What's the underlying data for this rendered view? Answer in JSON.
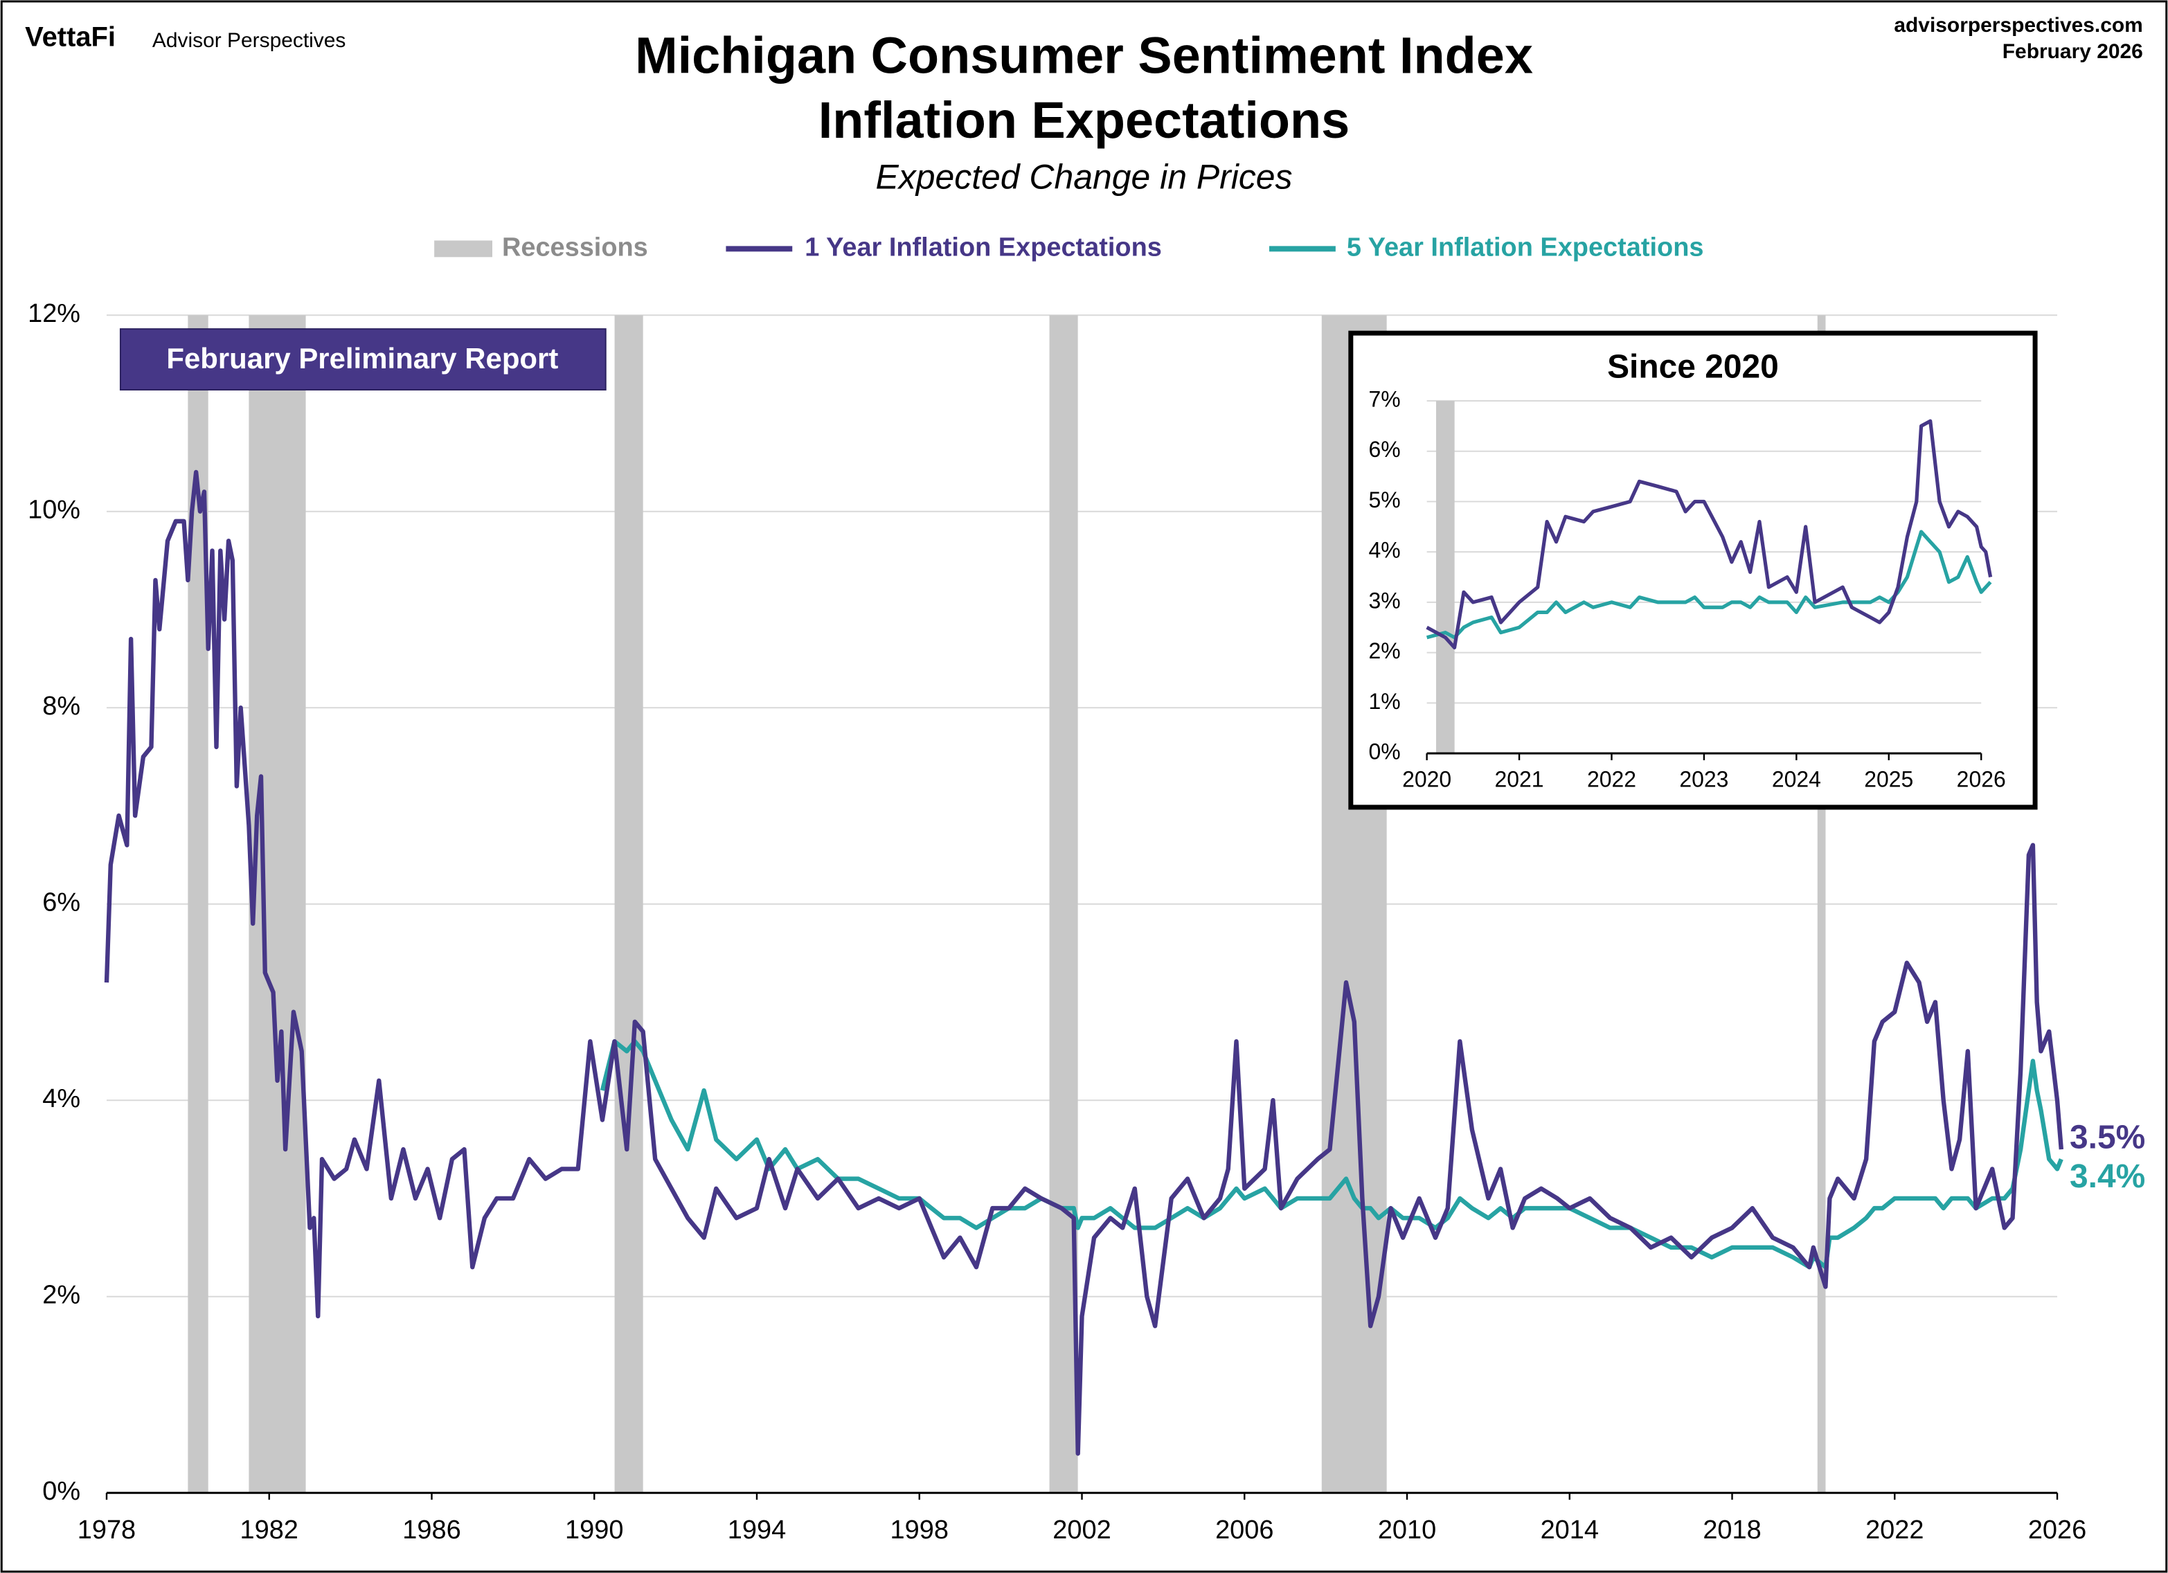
{
  "header": {
    "brand": "VettaFi",
    "publisher": "Advisor Perspectives",
    "website": "advisorperspectives.com",
    "date": "February 2026"
  },
  "chart_data": [
    {
      "type": "line",
      "title": [
        "Michigan Consumer Sentiment Index",
        "Inflation Expectations"
      ],
      "subtitle": "Expected Change in Prices",
      "annotation": "February Preliminary Report",
      "recession_label": "Recessions",
      "recession_color": "#c8c8c8",
      "recessions": [
        [
          1980.0,
          1980.5
        ],
        [
          1981.5,
          1982.9
        ],
        [
          1990.5,
          1991.2
        ],
        [
          2001.2,
          2001.9
        ],
        [
          2007.9,
          2009.5
        ],
        [
          2020.1,
          2020.3
        ]
      ],
      "x": [
        1978.0,
        1978.1,
        1978.3,
        1978.5,
        1978.6,
        1978.7,
        1978.9,
        1979.1,
        1979.2,
        1979.3,
        1979.5,
        1979.7,
        1979.9,
        1980.0,
        1980.1,
        1980.2,
        1980.3,
        1980.4,
        1980.5,
        1980.6,
        1980.7,
        1980.8,
        1980.9,
        1981.0,
        1981.1,
        1981.2,
        1981.3,
        1981.5,
        1981.6,
        1981.7,
        1981.8,
        1981.9,
        1982.1,
        1982.2,
        1982.3,
        1982.4,
        1982.6,
        1982.8,
        1983.0,
        1983.1,
        1983.2,
        1983.3,
        1983.6,
        1983.9,
        1984.1,
        1984.4,
        1984.7,
        1985.0,
        1985.3,
        1985.6,
        1985.9,
        1986.2,
        1986.5,
        1986.8,
        1987.0,
        1987.3,
        1987.6,
        1988.0,
        1988.4,
        1988.8,
        1989.2,
        1989.6,
        1989.9,
        1990.2,
        1990.5,
        1990.8,
        1991.0,
        1991.2,
        1991.5,
        1991.9,
        1992.3,
        1992.7,
        1993.0,
        1993.5,
        1994.0,
        1994.3,
        1994.7,
        1995.0,
        1995.5,
        1996.0,
        1996.5,
        1997.0,
        1997.5,
        1998.0,
        1998.3,
        1998.6,
        1999.0,
        1999.4,
        1999.8,
        2000.2,
        2000.6,
        2001.0,
        2001.5,
        2001.8,
        2001.9,
        2002.0,
        2002.3,
        2002.7,
        2003.0,
        2003.3,
        2003.6,
        2003.8,
        2004.2,
        2004.6,
        2005.0,
        2005.4,
        2005.6,
        2005.8,
        2006.0,
        2006.5,
        2006.7,
        2006.9,
        2007.3,
        2007.8,
        2008.1,
        2008.5,
        2008.7,
        2008.9,
        2009.1,
        2009.3,
        2009.6,
        2009.9,
        2010.3,
        2010.7,
        2011.0,
        2011.3,
        2011.6,
        2012.0,
        2012.3,
        2012.6,
        2012.9,
        2013.3,
        2013.7,
        2014.0,
        2014.5,
        2015.0,
        2015.5,
        2016.0,
        2016.5,
        2017.0,
        2017.5,
        2018.0,
        2018.5,
        2019.0,
        2019.5,
        2019.9,
        2020.0,
        2020.3,
        2020.4,
        2020.6,
        2021.0,
        2021.3,
        2021.5,
        2021.7,
        2022.0,
        2022.3,
        2022.6,
        2022.8,
        2023.0,
        2023.2,
        2023.4,
        2023.6,
        2023.8,
        2024.0,
        2024.4,
        2024.7,
        2024.9,
        2025.1,
        2025.3,
        2025.4,
        2025.5,
        2025.6,
        2025.8,
        2026.0,
        2026.1
      ],
      "series": [
        {
          "name": "1 Year Inflation Expectations",
          "color": "#463787",
          "end_label": "3.5%",
          "values": [
            5.2,
            6.4,
            6.9,
            6.6,
            8.7,
            6.9,
            7.5,
            7.6,
            9.3,
            8.8,
            9.7,
            9.9,
            9.9,
            9.3,
            10.0,
            10.4,
            10.0,
            10.2,
            8.6,
            9.6,
            7.6,
            9.6,
            8.9,
            9.7,
            9.5,
            7.2,
            8.0,
            6.8,
            5.8,
            6.9,
            7.3,
            5.3,
            5.1,
            4.2,
            4.7,
            3.5,
            4.9,
            4.5,
            2.7,
            2.8,
            1.8,
            3.4,
            3.2,
            3.3,
            3.6,
            3.3,
            4.2,
            3.0,
            3.5,
            3.0,
            3.3,
            2.8,
            3.4,
            3.5,
            2.3,
            2.8,
            3.0,
            3.0,
            3.4,
            3.2,
            3.3,
            3.3,
            4.6,
            3.8,
            4.6,
            3.5,
            4.8,
            4.7,
            3.4,
            3.1,
            2.8,
            2.6,
            3.1,
            2.8,
            2.9,
            3.4,
            2.9,
            3.3,
            3.0,
            3.2,
            2.9,
            3.0,
            2.9,
            3.0,
            2.7,
            2.4,
            2.6,
            2.3,
            2.9,
            2.9,
            3.1,
            3.0,
            2.9,
            2.8,
            0.4,
            1.8,
            2.6,
            2.8,
            2.7,
            3.1,
            2.0,
            1.7,
            3.0,
            3.2,
            2.8,
            3.0,
            3.3,
            4.6,
            3.1,
            3.3,
            4.0,
            2.9,
            3.2,
            3.4,
            3.5,
            5.2,
            4.8,
            3.0,
            1.7,
            2.0,
            2.9,
            2.6,
            3.0,
            2.6,
            2.9,
            4.6,
            3.7,
            3.0,
            3.3,
            2.7,
            3.0,
            3.1,
            3.0,
            2.9,
            3.0,
            2.8,
            2.7,
            2.5,
            2.6,
            2.4,
            2.6,
            2.7,
            2.9,
            2.6,
            2.5,
            2.3,
            2.5,
            2.1,
            3.0,
            3.2,
            3.0,
            3.4,
            4.6,
            4.8,
            4.9,
            5.4,
            5.2,
            4.8,
            5.0,
            4.0,
            3.3,
            3.6,
            4.5,
            2.9,
            3.3,
            2.7,
            2.8,
            4.3,
            6.5,
            6.6,
            5.0,
            4.5,
            4.7,
            4.0,
            3.5
          ]
        },
        {
          "name": "5 Year Inflation Expectations",
          "color": "#27a3a3",
          "end_label": "3.4%",
          "values": [
            null,
            null,
            null,
            null,
            null,
            null,
            null,
            null,
            null,
            null,
            null,
            null,
            null,
            null,
            null,
            null,
            null,
            null,
            null,
            null,
            null,
            null,
            null,
            null,
            null,
            null,
            null,
            null,
            null,
            null,
            null,
            null,
            null,
            null,
            null,
            null,
            null,
            null,
            null,
            null,
            null,
            null,
            null,
            null,
            null,
            null,
            null,
            null,
            null,
            null,
            null,
            null,
            null,
            null,
            null,
            null,
            null,
            null,
            null,
            null,
            null,
            null,
            null,
            4.1,
            4.6,
            4.5,
            4.6,
            4.5,
            4.2,
            3.8,
            3.5,
            4.1,
            3.6,
            3.4,
            3.6,
            3.3,
            3.5,
            3.3,
            3.4,
            3.2,
            3.2,
            3.1,
            3.0,
            3.0,
            2.9,
            2.8,
            2.8,
            2.7,
            2.8,
            2.9,
            2.9,
            3.0,
            2.9,
            2.9,
            2.7,
            2.8,
            2.8,
            2.9,
            2.8,
            2.7,
            2.7,
            2.7,
            2.8,
            2.9,
            2.8,
            2.9,
            3.0,
            3.1,
            3.0,
            3.1,
            3.0,
            2.9,
            3.0,
            3.0,
            3.0,
            3.2,
            3.0,
            2.9,
            2.9,
            2.8,
            2.9,
            2.8,
            2.8,
            2.7,
            2.8,
            3.0,
            2.9,
            2.8,
            2.9,
            2.8,
            2.9,
            2.9,
            2.9,
            2.9,
            2.8,
            2.7,
            2.7,
            2.6,
            2.5,
            2.5,
            2.4,
            2.5,
            2.5,
            2.5,
            2.4,
            2.3,
            2.4,
            2.3,
            2.6,
            2.6,
            2.7,
            2.8,
            2.9,
            2.9,
            3.0,
            3.0,
            3.0,
            3.0,
            3.0,
            2.9,
            3.0,
            3.0,
            3.0,
            2.9,
            3.0,
            3.0,
            3.1,
            3.5,
            4.1,
            4.4,
            4.1,
            3.9,
            3.4,
            3.3,
            3.4
          ]
        }
      ],
      "xlim": [
        1978,
        2026
      ],
      "xticks": [
        1978,
        1982,
        1986,
        1990,
        1994,
        1998,
        2002,
        2006,
        2010,
        2014,
        2018,
        2022,
        2026
      ],
      "ylim": [
        0,
        12
      ],
      "yticks": [
        {
          "value": 0,
          "label": "0%"
        },
        {
          "value": 2,
          "label": "2%"
        },
        {
          "value": 4,
          "label": "4%"
        },
        {
          "value": 6,
          "label": "6%"
        },
        {
          "value": 8,
          "label": "8%"
        },
        {
          "value": 10,
          "label": "10%"
        },
        {
          "value": 12,
          "label": "12%"
        }
      ],
      "grid": true,
      "legend": "top"
    },
    {
      "type": "line",
      "title": "Since 2020",
      "recession_color": "#c8c8c8",
      "recessions": [
        [
          2020.1,
          2020.3
        ]
      ],
      "x": [
        2020.0,
        2020.2,
        2020.3,
        2020.4,
        2020.5,
        2020.7,
        2020.8,
        2021.0,
        2021.2,
        2021.3,
        2021.4,
        2021.5,
        2021.7,
        2021.8,
        2022.0,
        2022.2,
        2022.3,
        2022.5,
        2022.7,
        2022.8,
        2022.9,
        2023.0,
        2023.2,
        2023.3,
        2023.4,
        2023.5,
        2023.6,
        2023.7,
        2023.9,
        2024.0,
        2024.1,
        2024.2,
        2024.5,
        2024.6,
        2024.8,
        2024.9,
        2025.0,
        2025.1,
        2025.2,
        2025.3,
        2025.35,
        2025.45,
        2025.55,
        2025.65,
        2025.75,
        2025.85,
        2025.95,
        2026.0,
        2026.05,
        2026.1
      ],
      "series": [
        {
          "color": "#463787",
          "values": [
            2.5,
            2.3,
            2.1,
            3.2,
            3.0,
            3.1,
            2.6,
            3.0,
            3.3,
            4.6,
            4.2,
            4.7,
            4.6,
            4.8,
            4.9,
            5.0,
            5.4,
            5.3,
            5.2,
            4.8,
            5.0,
            5.0,
            4.3,
            3.8,
            4.2,
            3.6,
            4.6,
            3.3,
            3.5,
            3.2,
            4.5,
            3.0,
            3.3,
            2.9,
            2.7,
            2.6,
            2.8,
            3.3,
            4.3,
            5.0,
            6.5,
            6.6,
            5.0,
            4.5,
            4.8,
            4.7,
            4.5,
            4.1,
            4.0,
            3.5
          ]
        },
        {
          "color": "#27a3a3",
          "values": [
            2.3,
            2.4,
            2.3,
            2.5,
            2.6,
            2.7,
            2.4,
            2.5,
            2.8,
            2.8,
            3.0,
            2.8,
            3.0,
            2.9,
            3.0,
            2.9,
            3.1,
            3.0,
            3.0,
            3.0,
            3.1,
            2.9,
            2.9,
            3.0,
            3.0,
            2.9,
            3.1,
            3.0,
            3.0,
            2.8,
            3.1,
            2.9,
            3.0,
            3.0,
            3.0,
            3.1,
            3.0,
            3.2,
            3.5,
            4.1,
            4.4,
            4.2,
            4.0,
            3.4,
            3.5,
            3.9,
            3.4,
            3.2,
            3.3,
            3.4
          ]
        }
      ],
      "xlim": [
        2020,
        2026
      ],
      "xticks": [
        2020,
        2021,
        2022,
        2023,
        2024,
        2025,
        2026
      ],
      "ylim": [
        0,
        7
      ],
      "yticks": [
        {
          "value": 0,
          "label": "0%"
        },
        {
          "value": 1,
          "label": "1%"
        },
        {
          "value": 2,
          "label": "2%"
        },
        {
          "value": 3,
          "label": "3%"
        },
        {
          "value": 4,
          "label": "4%"
        },
        {
          "value": 5,
          "label": "5%"
        },
        {
          "value": 6,
          "label": "6%"
        },
        {
          "value": 7,
          "label": "7%"
        }
      ],
      "grid": true
    }
  ]
}
